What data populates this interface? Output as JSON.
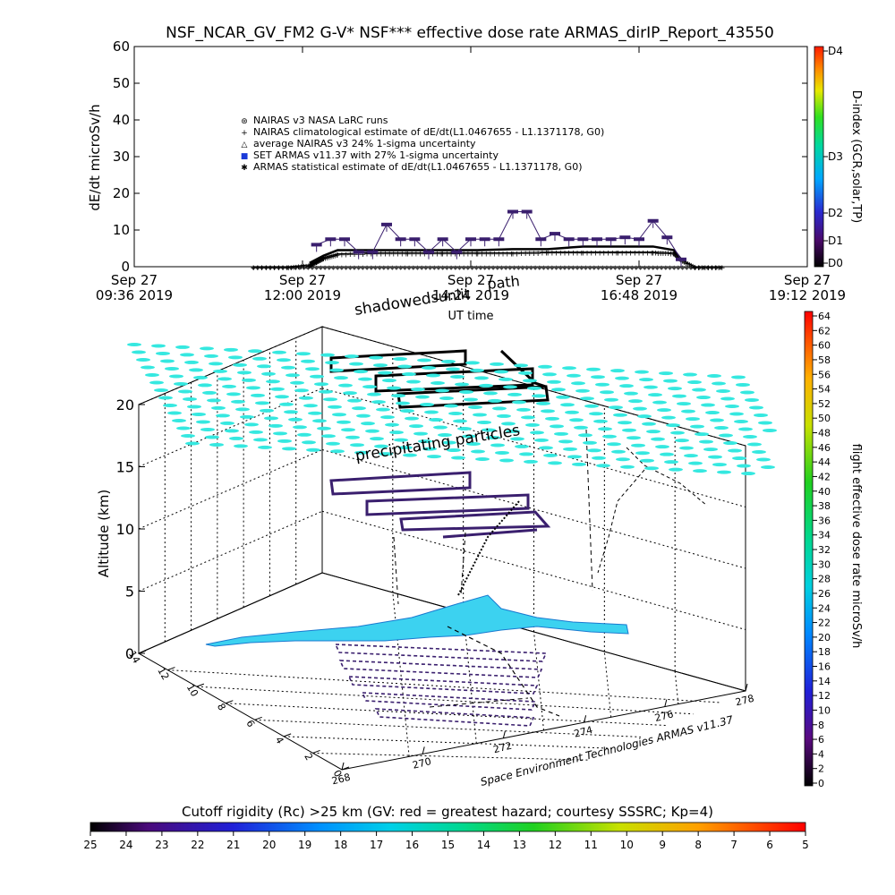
{
  "chart_data": [
    {
      "type": "line",
      "title": "NSF_NCAR_GV_FM2 G-V* NSF*** effective dose rate ARMAS_dirIP_Report_43550",
      "ylabel": "dE/dt microSv/h",
      "xlabel": "UT time",
      "ylim": [
        0,
        60
      ],
      "yticks": [
        "0",
        "10",
        "20",
        "30",
        "40",
        "50",
        "60"
      ],
      "xticks": [
        {
          "date": "Sep 27",
          "time": "09:36 2019"
        },
        {
          "date": "Sep 27",
          "time": "12:00 2019"
        },
        {
          "date": "Sep 27",
          "time": "14:24 2019"
        },
        {
          "date": "Sep 27",
          "time": "16:48 2019"
        },
        {
          "date": "Sep 27",
          "time": "19:12 2019"
        }
      ],
      "x_hours": [
        9.6,
        19.2
      ],
      "annotations": [
        "shadowed",
        "sunlit",
        "path"
      ],
      "legend": [
        {
          "symbol": "⊛",
          "label": "NAIRAS v3 NASA LaRC runs"
        },
        {
          "symbol": "+",
          "label": "NAIRAS climatological estimate of dE/dt(L1.0467655 - L1.1371178, G0)"
        },
        {
          "symbol": "△",
          "label": "average NAIRAS v3 24% 1-sigma uncertainty"
        },
        {
          "symbol": "■",
          "label": "SET ARMAS v11.37 with 27% 1-sigma uncertainty"
        },
        {
          "symbol": "✱",
          "label": "ARMAS statistical estimate of dE/dt(L1.0467655 - L1.1371178, G0)"
        }
      ],
      "series": [
        {
          "name": "NAIRAS climatological estimate of dE/dt(L1.0467655 - L1.1371178, G0)",
          "x": [
            11.3,
            11.8,
            12.1,
            12.2,
            12.3,
            12.5,
            13.0,
            13.5,
            14.0,
            14.5,
            15.0,
            15.5,
            16.0,
            16.5,
            17.0,
            17.3,
            17.4,
            17.6,
            18.0
          ],
          "y": [
            0,
            0,
            0.5,
            1.5,
            2.5,
            3.5,
            3.8,
            3.8,
            3.8,
            3.8,
            3.8,
            4.0,
            4.0,
            4.0,
            4.0,
            3.8,
            2,
            0,
            0
          ]
        },
        {
          "name": "ARMAS statistical estimate of dE/dt(L1.0467655 - L1.1371178, G0)",
          "x": [
            12.1,
            12.3,
            12.5,
            13.0,
            13.5,
            14.0,
            14.5,
            15.0,
            15.5,
            16.0,
            16.5,
            17.0,
            17.3,
            17.4
          ],
          "y": [
            1,
            3,
            4.5,
            4.5,
            4.5,
            4.5,
            4.5,
            4.8,
            4.8,
            5.5,
            5.5,
            5.5,
            4.5,
            2
          ]
        },
        {
          "name": "SET ARMAS v11.37 with 27% 1-sigma uncertainty",
          "x": [
            12.2,
            12.4,
            12.6,
            12.8,
            13.0,
            13.2,
            13.4,
            13.6,
            13.8,
            14.0,
            14.2,
            14.4,
            14.6,
            14.8,
            15.0,
            15.2,
            15.4,
            15.6,
            15.8,
            16.0,
            16.2,
            16.4,
            16.6,
            16.8,
            17.0,
            17.2,
            17.4
          ],
          "y": [
            6,
            7.5,
            7.5,
            4,
            4,
            11.5,
            7.5,
            7.5,
            4,
            7.5,
            4,
            7.5,
            7.5,
            7.5,
            15,
            15,
            7.5,
            9,
            7.5,
            7.5,
            7.5,
            7.5,
            8,
            7.5,
            12.5,
            8,
            2
          ]
        }
      ]
    },
    {
      "type": "scatter",
      "subtype": "3d-flight-track",
      "zlabel": "Altitude (km)",
      "zticks": [
        "0",
        "5",
        "10",
        "15",
        "20"
      ],
      "x_ticks": [
        "268",
        "270",
        "272",
        "274",
        "276",
        "278"
      ],
      "y_ticks": [
        "0",
        "2",
        "4",
        "6",
        "8",
        "10",
        "12",
        "14"
      ],
      "annotations": [
        "precipitating particles"
      ],
      "credit": "Space Environment Technologies ARMAS v11.37"
    }
  ],
  "colorbars": {
    "dindex": {
      "label": "D-index (GCR,solar,TP)",
      "ticks": [
        "D0",
        "D1",
        "D2",
        "D3",
        "D4"
      ]
    },
    "dose": {
      "label": "flight effective dose rate microSv/h",
      "ticks": [
        "0",
        "2",
        "4",
        "6",
        "8",
        "10",
        "12",
        "14",
        "16",
        "18",
        "20",
        "22",
        "24",
        "26",
        "28",
        "30",
        "32",
        "34",
        "36",
        "38",
        "40",
        "42",
        "44",
        "46",
        "48",
        "50",
        "52",
        "54",
        "56",
        "58",
        "60",
        "62",
        "64"
      ]
    },
    "cutoff": {
      "label": "Cutoff rigidity (Rc) >25 km (GV: red = greatest hazard; courtesy SSSRC; Kp=4)",
      "ticks": [
        "25",
        "24",
        "23",
        "22",
        "21",
        "20",
        "19",
        "18",
        "17",
        "16",
        "15",
        "14",
        "13",
        "12",
        "11",
        "10",
        "9",
        "8",
        "7",
        "6",
        "5"
      ]
    }
  },
  "colors": {
    "cyan_markers": "#35e8e0",
    "ground_fill": "#3cd2f0",
    "track_purple": "#3a1f6e"
  }
}
